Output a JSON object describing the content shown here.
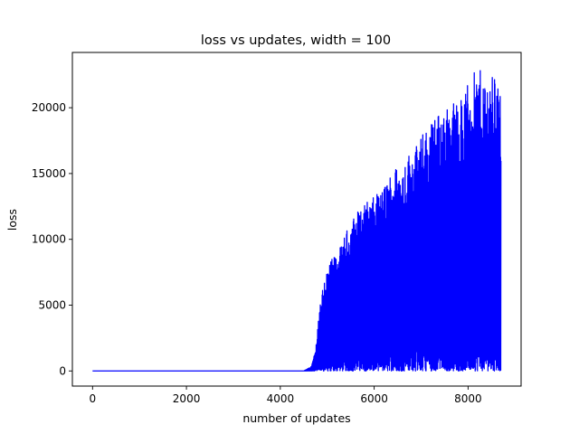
{
  "chart_data": {
    "type": "line",
    "title": "loss vs updates, width = 100",
    "xlabel": "number of updates",
    "ylabel": "loss",
    "xlim": [
      -430,
      9130
    ],
    "ylim": [
      -1150,
      24200
    ],
    "x_ticks": [
      0,
      2000,
      4000,
      6000,
      8000
    ],
    "y_ticks": [
      0,
      5000,
      10000,
      15000,
      20000
    ],
    "grid": false,
    "legend": "none",
    "series": [
      {
        "color": "#0000ff",
        "x_range": [
          0,
          8700
        ],
        "flat_until": 4500,
        "flat_value": 0,
        "min_value": 0,
        "upper_envelope": [
          [
            4500,
            0
          ],
          [
            4650,
            300
          ],
          [
            4750,
            1500
          ],
          [
            4800,
            3500
          ],
          [
            4850,
            5500
          ],
          [
            4950,
            7500
          ],
          [
            5100,
            8500
          ],
          [
            5300,
            9500
          ],
          [
            5450,
            11000
          ],
          [
            5600,
            12000
          ],
          [
            5800,
            12800
          ],
          [
            6000,
            13200
          ],
          [
            6200,
            14000
          ],
          [
            6400,
            15500
          ],
          [
            6600,
            15800
          ],
          [
            6700,
            16500
          ],
          [
            6900,
            17200
          ],
          [
            7100,
            18500
          ],
          [
            7300,
            19500
          ],
          [
            7500,
            20000
          ],
          [
            7700,
            20500
          ],
          [
            7900,
            21000
          ],
          [
            8000,
            22000
          ],
          [
            8200,
            23000
          ],
          [
            8400,
            22500
          ],
          [
            8600,
            22700
          ],
          [
            8700,
            21500
          ]
        ]
      }
    ]
  }
}
